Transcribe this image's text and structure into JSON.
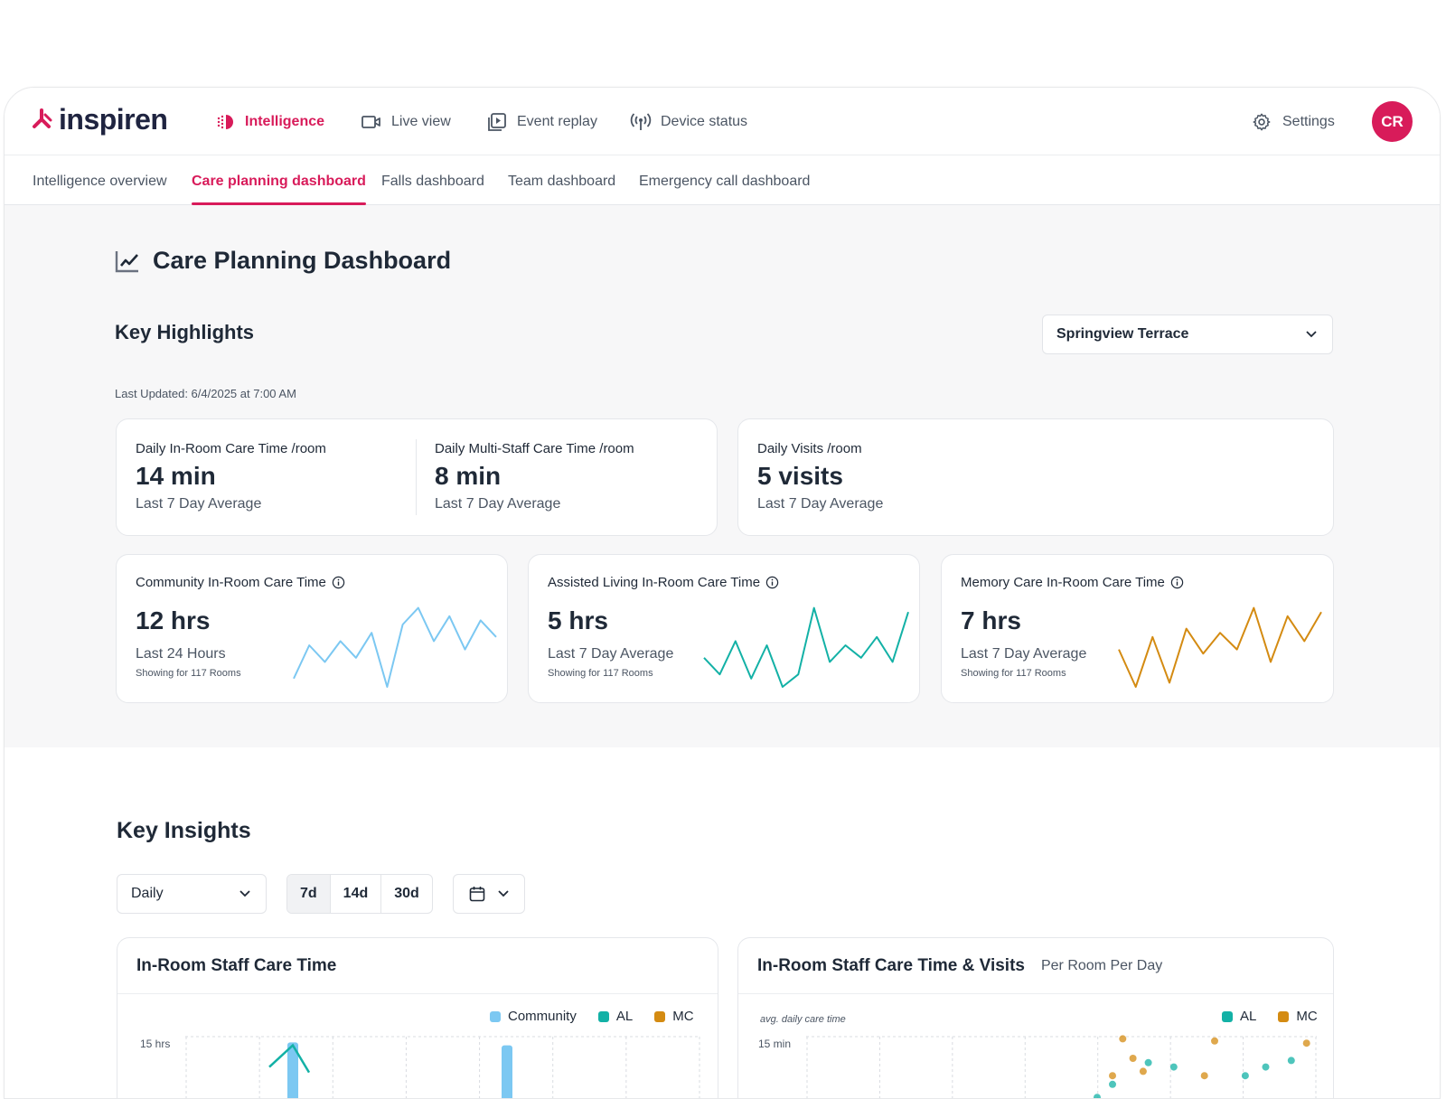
{
  "app": {
    "brand": "inspiren",
    "user_initials": "CR",
    "colors": {
      "accent": "#d81b5a",
      "community": "#7cc8f2",
      "al": "#13b1a6",
      "mc": "#d48b12"
    }
  },
  "nav": {
    "items": [
      {
        "label": "Intelligence",
        "icon": "intelligence-icon",
        "active": true
      },
      {
        "label": "Live view",
        "icon": "video-camera-icon"
      },
      {
        "label": "Event replay",
        "icon": "replay-icon"
      },
      {
        "label": "Device status",
        "icon": "signal-tower-icon"
      }
    ],
    "settings_label": "Settings"
  },
  "subnav": {
    "tabs": [
      {
        "label": "Intelligence overview"
      },
      {
        "label": "Care planning dashboard",
        "active": true
      },
      {
        "label": "Falls dashboard"
      },
      {
        "label": "Team dashboard"
      },
      {
        "label": "Emergency call dashboard"
      }
    ]
  },
  "page": {
    "title": "Care Planning Dashboard"
  },
  "highlights": {
    "title": "Key Highlights",
    "facility": "Springview Terrace",
    "last_updated": "Last Updated: 6/4/2025 at 7:00 AM",
    "metrics": [
      {
        "label": "Daily In-Room Care Time /room",
        "value": "14 min",
        "sub": "Last 7 Day Average"
      },
      {
        "label": "Daily Multi-Staff Care Time /room",
        "value": "8 min",
        "sub": "Last 7 Day Average"
      },
      {
        "label": "Daily Visits /room",
        "value": "5 visits",
        "sub": "Last 7 Day Average"
      }
    ],
    "trend_cards": [
      {
        "label": "Community In-Room Care Time",
        "value": "12 hrs",
        "sub": "Last 24 Hours",
        "note": "Showing for 117 Rooms",
        "color": "#7cc8f2",
        "series": [
          0.1,
          0.5,
          0.3,
          0.55,
          0.35,
          0.65,
          0.0,
          0.75,
          0.95,
          0.55,
          0.85,
          0.45,
          0.8,
          0.6
        ]
      },
      {
        "label": "Assisted Living In-Room Care Time",
        "value": "5 hrs",
        "sub": "Last 7 Day Average",
        "note": "Showing for 117 Rooms",
        "color": "#13b1a6",
        "series": [
          0.35,
          0.15,
          0.55,
          0.1,
          0.5,
          0.0,
          0.15,
          0.95,
          0.3,
          0.5,
          0.35,
          0.6,
          0.3,
          0.9
        ]
      },
      {
        "label": "Memory Care In-Room Care Time",
        "value": "7 hrs",
        "sub": "Last 7 Day Average",
        "note": "Showing for 117 Rooms",
        "color": "#d48b12",
        "series": [
          0.45,
          0.0,
          0.6,
          0.05,
          0.7,
          0.4,
          0.65,
          0.45,
          0.95,
          0.3,
          0.85,
          0.55,
          0.9
        ]
      }
    ]
  },
  "insights": {
    "title": "Key Insights",
    "granularity": "Daily",
    "ranges": [
      {
        "label": "7d",
        "active": true
      },
      {
        "label": "14d"
      },
      {
        "label": "30d"
      }
    ],
    "charts": [
      {
        "title": "In-Room Staff Care Time",
        "subtitle": "",
        "legend": [
          "Community",
          "AL",
          "MC"
        ],
        "y_top_label": "15 hrs"
      },
      {
        "title": "In-Room Staff Care Time & Visits",
        "subtitle": "Per Room Per Day",
        "legend": [
          "AL",
          "MC"
        ],
        "y_top_label": "15 min",
        "y_axis_note": "avg. daily care time"
      }
    ]
  },
  "chart_data": [
    {
      "type": "bar",
      "title": "In-Room Staff Care Time",
      "series": [
        {
          "name": "Community",
          "values": [
            14,
            13.5
          ]
        },
        {
          "name": "AL",
          "values": [
            13.5
          ]
        }
      ],
      "ylabel": "",
      "ytick_top": "15 hrs"
    },
    {
      "type": "scatter",
      "title": "In-Room Staff Care Time & Visits",
      "subtitle": "Per Room Per Day",
      "ylabel": "avg. daily care time",
      "ytick_top": "15 min",
      "series": [
        {
          "name": "AL",
          "points": [
            [
              0.5,
              12
            ],
            [
              0.6,
              13.8
            ],
            [
              0.57,
              13.2
            ],
            [
              0.67,
              14.8
            ],
            [
              0.72,
              14.6
            ],
            [
              0.86,
              14.2
            ],
            [
              0.9,
              14.6
            ],
            [
              0.95,
              14.9
            ]
          ]
        },
        {
          "name": "MC",
          "points": [
            [
              0.6,
              14.2
            ],
            [
              0.64,
              15.0
            ],
            [
              0.66,
              14.4
            ],
            [
              0.62,
              15.9
            ],
            [
              0.8,
              15.8
            ],
            [
              0.98,
              15.7
            ],
            [
              0.48,
              12.3
            ],
            [
              0.78,
              14.2
            ]
          ]
        }
      ]
    }
  ]
}
